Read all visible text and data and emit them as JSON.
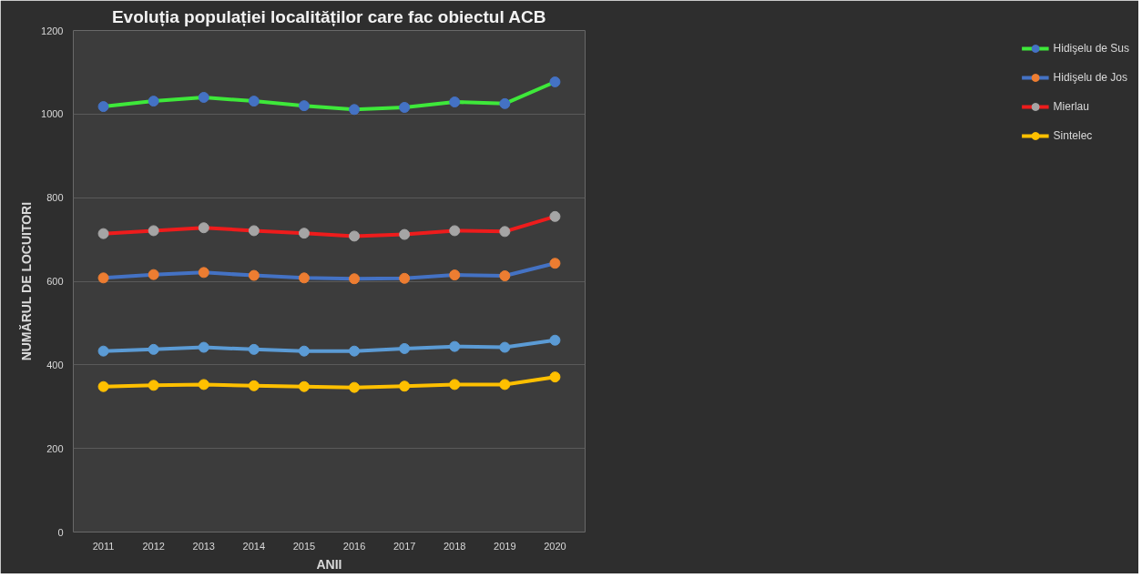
{
  "chart_data": {
    "type": "line",
    "title": "Evoluția populației localităților care fac obiectul ACB",
    "xlabel": "ANII",
    "ylabel": "NUMĂRUL DE LOCUITORI",
    "categories": [
      "2011",
      "2012",
      "2013",
      "2014",
      "2015",
      "2016",
      "2017",
      "2018",
      "2019",
      "2020"
    ],
    "series": [
      {
        "name": "Hidişelu de Sus",
        "color": "#3ee83a",
        "colors": [
          "#4472c4",
          "#4472c4",
          "#4472c4",
          "#4472c4",
          "#4472c4",
          "#4472c4",
          "#4472c4",
          "#4472c4",
          "#4472c4",
          "#4472c4"
        ],
        "values": [
          1018,
          1031,
          1040,
          1031,
          1020,
          1011,
          1016,
          1029,
          1025,
          1077
        ]
      },
      {
        "name": "Hidişelu de Jos",
        "color": "#4472c4",
        "colors": [
          "#ed7d31",
          "#ed7d31",
          "#ed7d31",
          "#ed7d31",
          "#ed7d31",
          "#ed7d31",
          "#ed7d31",
          "#ed7d31",
          "#ed7d31",
          "#ed7d31"
        ],
        "values": [
          608,
          616,
          621,
          614,
          608,
          606,
          607,
          615,
          613,
          643
        ]
      },
      {
        "name": "Mierlau",
        "color": "#ee1c1c",
        "colors": [
          "#a5a5a5",
          "#a5a5a5",
          "#a5a5a5",
          "#a5a5a5",
          "#a5a5a5",
          "#a5a5a5",
          "#a5a5a5",
          "#a5a5a5",
          "#a5a5a5",
          "#a5a5a5"
        ],
        "values": [
          714,
          721,
          728,
          721,
          715,
          708,
          712,
          721,
          719,
          755
        ]
      },
      {
        "name": "Sintelec",
        "color": "#ffc000",
        "colors": [
          "#ffc000",
          "#ffc000",
          "#ffc000",
          "#ffc000",
          "#ffc000",
          "#ffc000",
          "#ffc000",
          "#ffc000",
          "#ffc000",
          "#ffc000"
        ],
        "values": [
          348,
          351,
          353,
          350,
          348,
          346,
          349,
          353,
          353,
          371
        ]
      },
      {
        "color": "#5b9bd5",
        "colors": [
          "#5b9bd5",
          "#5b9bd5",
          "#5b9bd5",
          "#5b9bd5",
          "#5b9bd5",
          "#5b9bd5",
          "#5b9bd5",
          "#5b9bd5",
          "#5b9bd5",
          "#5b9bd5"
        ],
        "values": [
          433,
          437,
          442,
          437,
          433,
          433,
          439,
          444,
          442,
          459
        ]
      }
    ],
    "ylim": [
      0,
      1200
    ],
    "yticks": [
      0,
      200,
      400,
      600,
      800,
      1000,
      1200
    ],
    "grid": "y",
    "legend": "right",
    "marker": "circle",
    "line_style": "solid"
  }
}
